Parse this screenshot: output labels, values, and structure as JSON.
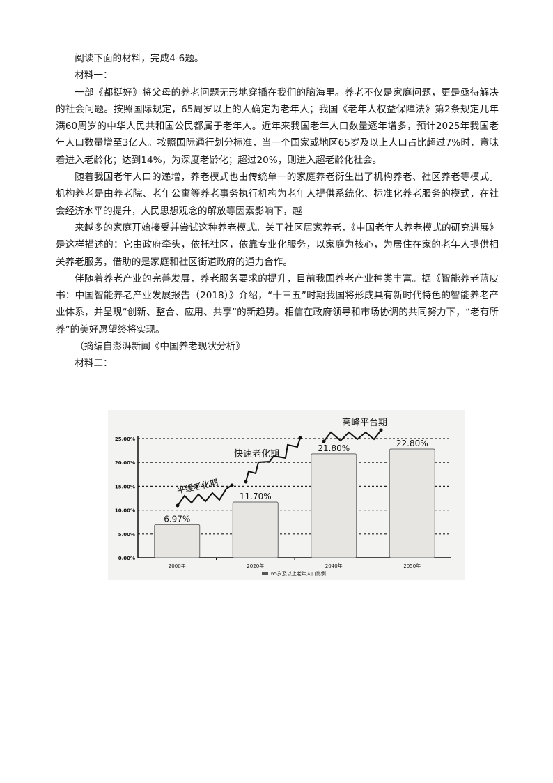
{
  "intro": "阅读下面的材料，完成4-6题。",
  "material1_label": "材料一：",
  "paragraphs": [
    "一部《都挺好》将父母的养老问题无形地穿插在我们的脑海里。养老不仅是家庭问题，更是亟待解决的社会问题。按照国际规定，65周岁以上的人确定为老年人；我国《老年人权益保障法》第2条规定几年满60周岁的中华人民共和国公民都属于老年人。近年来我国老年人口数量逐年增多，预计2025年我国老年人口数量增至3亿人。按照国际通行划分标准，当一个国家或地区65岁及以上人口占比超过7%时，意味着进入老龄化；达到14%，为深度老龄化；超过20%，则进入超老龄化社会。",
    "随着我国老年人口的递增，养老模式也由传统单一的家庭养老衍生出了机构养老、社区养老等模式。机构养老是由养老院、老年公寓等养老事务执行机构为老年人提供系统化、标准化养老服务的模式，在社会经济水平的提升，人民思想观念的解放等因素影响下，越",
    "来越多的家庭开始接受并尝试这种养老模式。关于社区居家养老，《中国老年人养老模式的研究进展》是这样描述的：它由政府牵头，依托社区，依靠专业化服务，以家庭为核心，为居住在家的老年人提供相关养老服务，借助的是家庭和社区街道政府的通力合作。",
    "伴随着养老产业的完善发展，养老服务要求的提升，目前我国养老产业种类丰富。据《智能养老蓝皮书：中国智能养老产业发展报告（2018）》介绍，“十三五”时期我国将形成具有新时代特色的智能养老产业体系，并呈现“创新、整合、应用、共享”的新趋势。相信在政府领导和市场协调的共同努力下，“老有所养”的美好愿望终将实现。"
  ],
  "source": "（摘编自澎湃新闻《中国养老现状分析》",
  "material2_label": "材料二：",
  "chart_data": {
    "type": "bar",
    "categories": [
      "2000年",
      "2020年",
      "2040年",
      "2050年"
    ],
    "series": [
      {
        "name": "65岁及以上老年人口比例",
        "values": [
          6.97,
          11.7,
          21.8,
          22.8
        ]
      }
    ],
    "data_labels": [
      "6.97%",
      "11.70%",
      "21.80%",
      "22.80%"
    ],
    "yticks": [
      "0.00%",
      "5.00%",
      "10.00%",
      "15.00%",
      "20.00%",
      "25.00%"
    ],
    "ylim": [
      0,
      25
    ],
    "grid": true,
    "legend": "bottom",
    "annotations": [
      "平缓老化期",
      "快速老化期",
      "高峰平台期"
    ]
  }
}
